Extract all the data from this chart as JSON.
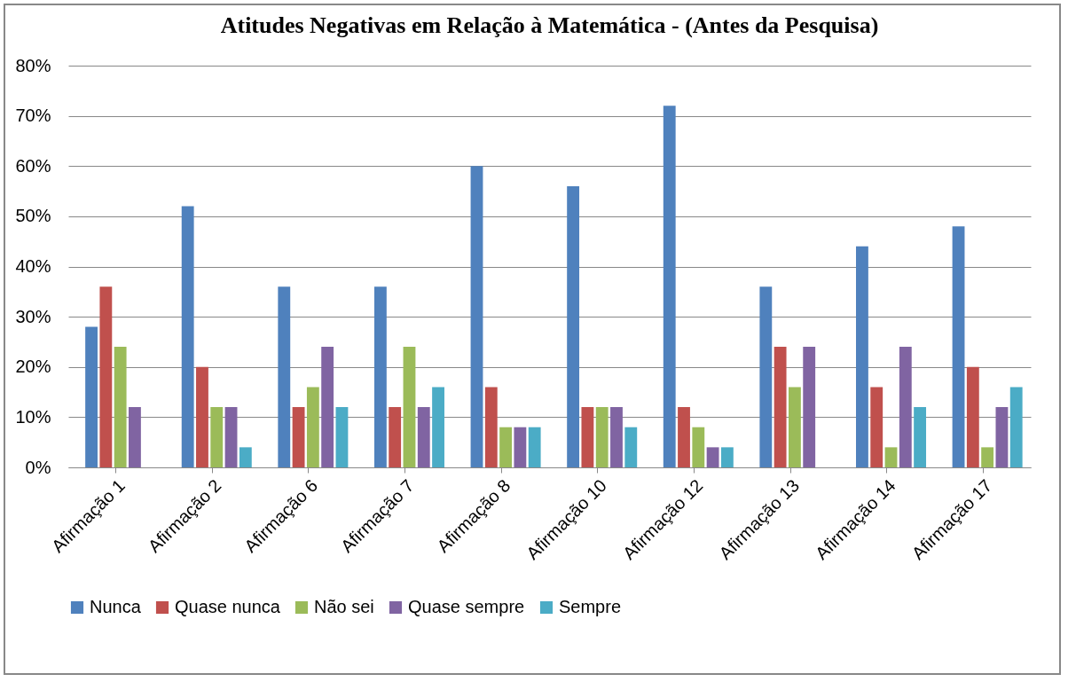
{
  "chart_data": {
    "type": "bar",
    "title": "Atitudes Negativas em Relação à Matemática - (Antes da Pesquisa)",
    "categories": [
      "Afirmação 1",
      "Afirmação 2",
      "Afirmação 6",
      "Afirmação 7",
      "Afirmação 8",
      "Afirmação 10",
      "Afirmação 12",
      "Afirmação 13",
      "Afirmação 14",
      "Afirmação 17"
    ],
    "series": [
      {
        "name": "Nunca",
        "color": "#4f81bd",
        "values": [
          28,
          52,
          36,
          36,
          60,
          56,
          72,
          36,
          44,
          48
        ]
      },
      {
        "name": "Quase nunca",
        "color": "#c0504d",
        "values": [
          36,
          20,
          12,
          12,
          16,
          12,
          12,
          24,
          16,
          20
        ]
      },
      {
        "name": "Não sei",
        "color": "#9bbb59",
        "values": [
          24,
          12,
          16,
          24,
          8,
          12,
          8,
          16,
          4,
          4
        ]
      },
      {
        "name": "Quase sempre",
        "color": "#8064a2",
        "values": [
          12,
          12,
          24,
          12,
          8,
          12,
          4,
          24,
          24,
          12
        ]
      },
      {
        "name": "Sempre",
        "color": "#4bacc6",
        "values": [
          0,
          4,
          12,
          16,
          8,
          8,
          4,
          0,
          12,
          16
        ]
      }
    ],
    "ylim": [
      0,
      80
    ],
    "yticks": [
      {
        "value": 0,
        "label": "0%"
      },
      {
        "value": 10,
        "label": "10%"
      },
      {
        "value": 20,
        "label": "20%"
      },
      {
        "value": 30,
        "label": "30%"
      },
      {
        "value": 40,
        "label": "40%"
      },
      {
        "value": 50,
        "label": "50%"
      },
      {
        "value": 60,
        "label": "60%"
      },
      {
        "value": 70,
        "label": "70%"
      },
      {
        "value": 80,
        "label": "80%"
      }
    ],
    "grid": "y",
    "legend": "bottom"
  }
}
